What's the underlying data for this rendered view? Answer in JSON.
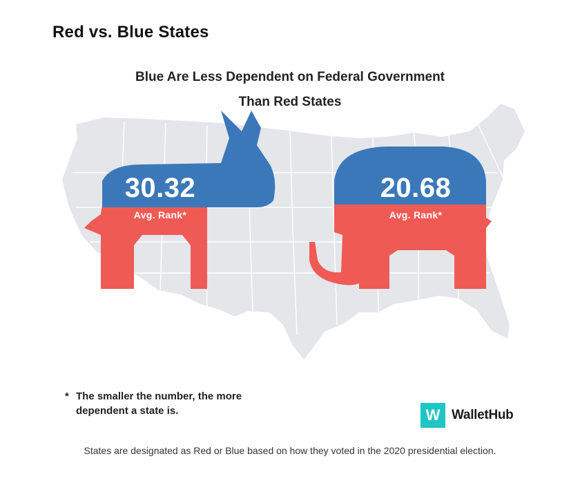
{
  "header": {
    "title": "Red vs. Blue States",
    "subtitle_line1": "Blue Are Less Dependent on Federal Government",
    "subtitle_line2": "Than Red States"
  },
  "stats": {
    "democrat": {
      "value": "30.32",
      "label": "Avg. Rank*",
      "icon": "donkey-icon"
    },
    "republican": {
      "value": "20.68",
      "label": "Avg. Rank*",
      "icon": "elephant-icon"
    }
  },
  "footnote": {
    "marker": "*",
    "line1": "The smaller the number, the more",
    "line2": "dependent a state is."
  },
  "brand": {
    "mark": "W",
    "name": "WalletHub"
  },
  "note": "States are designated as Red or Blue based on how they voted in the 2020 presidential election.",
  "colors": {
    "blue": "#3b78b9",
    "red": "#f05a55",
    "map": "#e4e6ea",
    "brand": "#1fc6c3"
  }
}
